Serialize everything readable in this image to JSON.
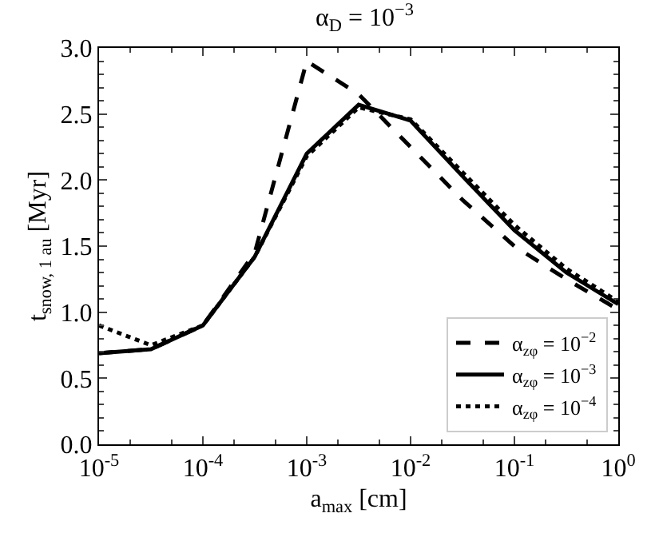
{
  "chart_data": {
    "type": "line",
    "title": "α$_{D}$ = 10$^{−3}$",
    "xlabel": "a$_{max}$ [cm]",
    "ylabel": "t$_{snow, 1 au}$ [Myr]",
    "log": "x",
    "legend": "bottom right",
    "marker": "none",
    "x": [
      1e-05,
      3.16e-05,
      0.0001,
      0.000316,
      0.001,
      0.00316,
      0.01,
      0.0316,
      0.1,
      0.316,
      1
    ],
    "xlim": [
      1e-05,
      1
    ],
    "xticks": [
      {
        "value": 1e-05,
        "label": "10$^{-5}$"
      },
      {
        "value": 0.0001,
        "label": "10$^{-4}$"
      },
      {
        "value": 0.001,
        "label": "10$^{-3}$"
      },
      {
        "value": 0.01,
        "label": "10$^{-2}$"
      },
      {
        "value": 0.1,
        "label": "10$^{-1}$"
      },
      {
        "value": 1,
        "label": "10$^{0}$"
      }
    ],
    "ylim": [
      0,
      3
    ],
    "yticks": [
      {
        "value": 0,
        "label": "0.0"
      },
      0.5,
      {
        "value": 1,
        "label": "1.0"
      },
      1.5,
      {
        "value": 2,
        "label": "2.0"
      },
      2.5,
      {
        "value": 3,
        "label": "3.0"
      }
    ],
    "series": [
      {
        "name": "α$_{zφ}$ = 10$^{−2}$",
        "color": "#000000",
        "line_style": "dashed",
        "values": [
          0.69,
          0.72,
          0.9,
          1.45,
          2.9,
          2.65,
          2.25,
          1.85,
          1.5,
          1.25,
          1.02
        ]
      },
      {
        "name": "α$_{zφ}$ = 10$^{−3}$",
        "color": "#000000",
        "line_style": "solid",
        "values": [
          0.69,
          0.72,
          0.9,
          1.42,
          2.2,
          2.57,
          2.45,
          2.03,
          1.62,
          1.3,
          1.06
        ]
      },
      {
        "name": "α$_{zφ}$ = 10$^{−4}$",
        "color": "#000000",
        "line_style": "dotted",
        "values": [
          0.9,
          0.75,
          0.9,
          1.42,
          2.18,
          2.55,
          2.46,
          2.06,
          1.66,
          1.33,
          1.08
        ]
      }
    ]
  }
}
